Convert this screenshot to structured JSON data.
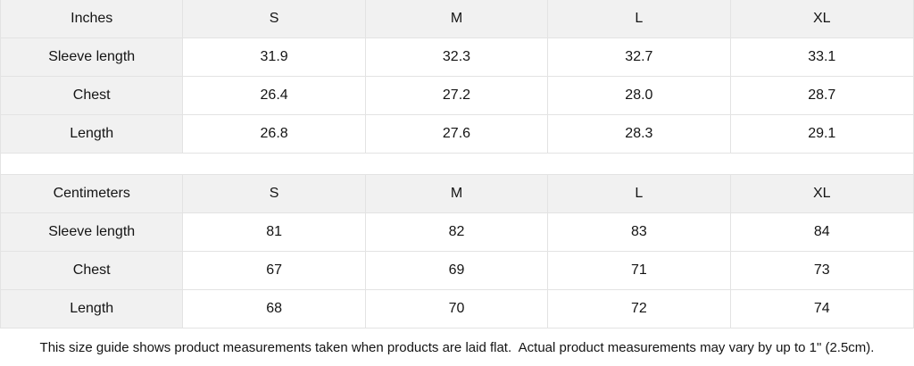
{
  "tables": [
    {
      "unit_label": "Inches",
      "sizes": [
        "S",
        "M",
        "L",
        "XL"
      ],
      "rows": [
        {
          "label": "Sleeve length",
          "values": [
            "31.9",
            "32.3",
            "32.7",
            "33.1"
          ]
        },
        {
          "label": "Chest",
          "values": [
            "26.4",
            "27.2",
            "28.0",
            "28.7"
          ]
        },
        {
          "label": "Length",
          "values": [
            "26.8",
            "27.6",
            "28.3",
            "29.1"
          ]
        }
      ]
    },
    {
      "unit_label": "Centimeters",
      "sizes": [
        "S",
        "M",
        "L",
        "XL"
      ],
      "rows": [
        {
          "label": "Sleeve length",
          "values": [
            "81",
            "82",
            "83",
            "84"
          ]
        },
        {
          "label": "Chest",
          "values": [
            "67",
            "69",
            "71",
            "73"
          ]
        },
        {
          "label": "Length",
          "values": [
            "68",
            "70",
            "72",
            "74"
          ]
        }
      ]
    }
  ],
  "footer": {
    "note": "This size guide shows product measurements taken when products are laid flat.  Actual product measurements may vary by up to 1\" (2.5cm)."
  },
  "colors": {
    "header_fill": "#f1f1f1",
    "border": "#e3e3e3",
    "text": "#141414",
    "background": "#ffffff"
  }
}
